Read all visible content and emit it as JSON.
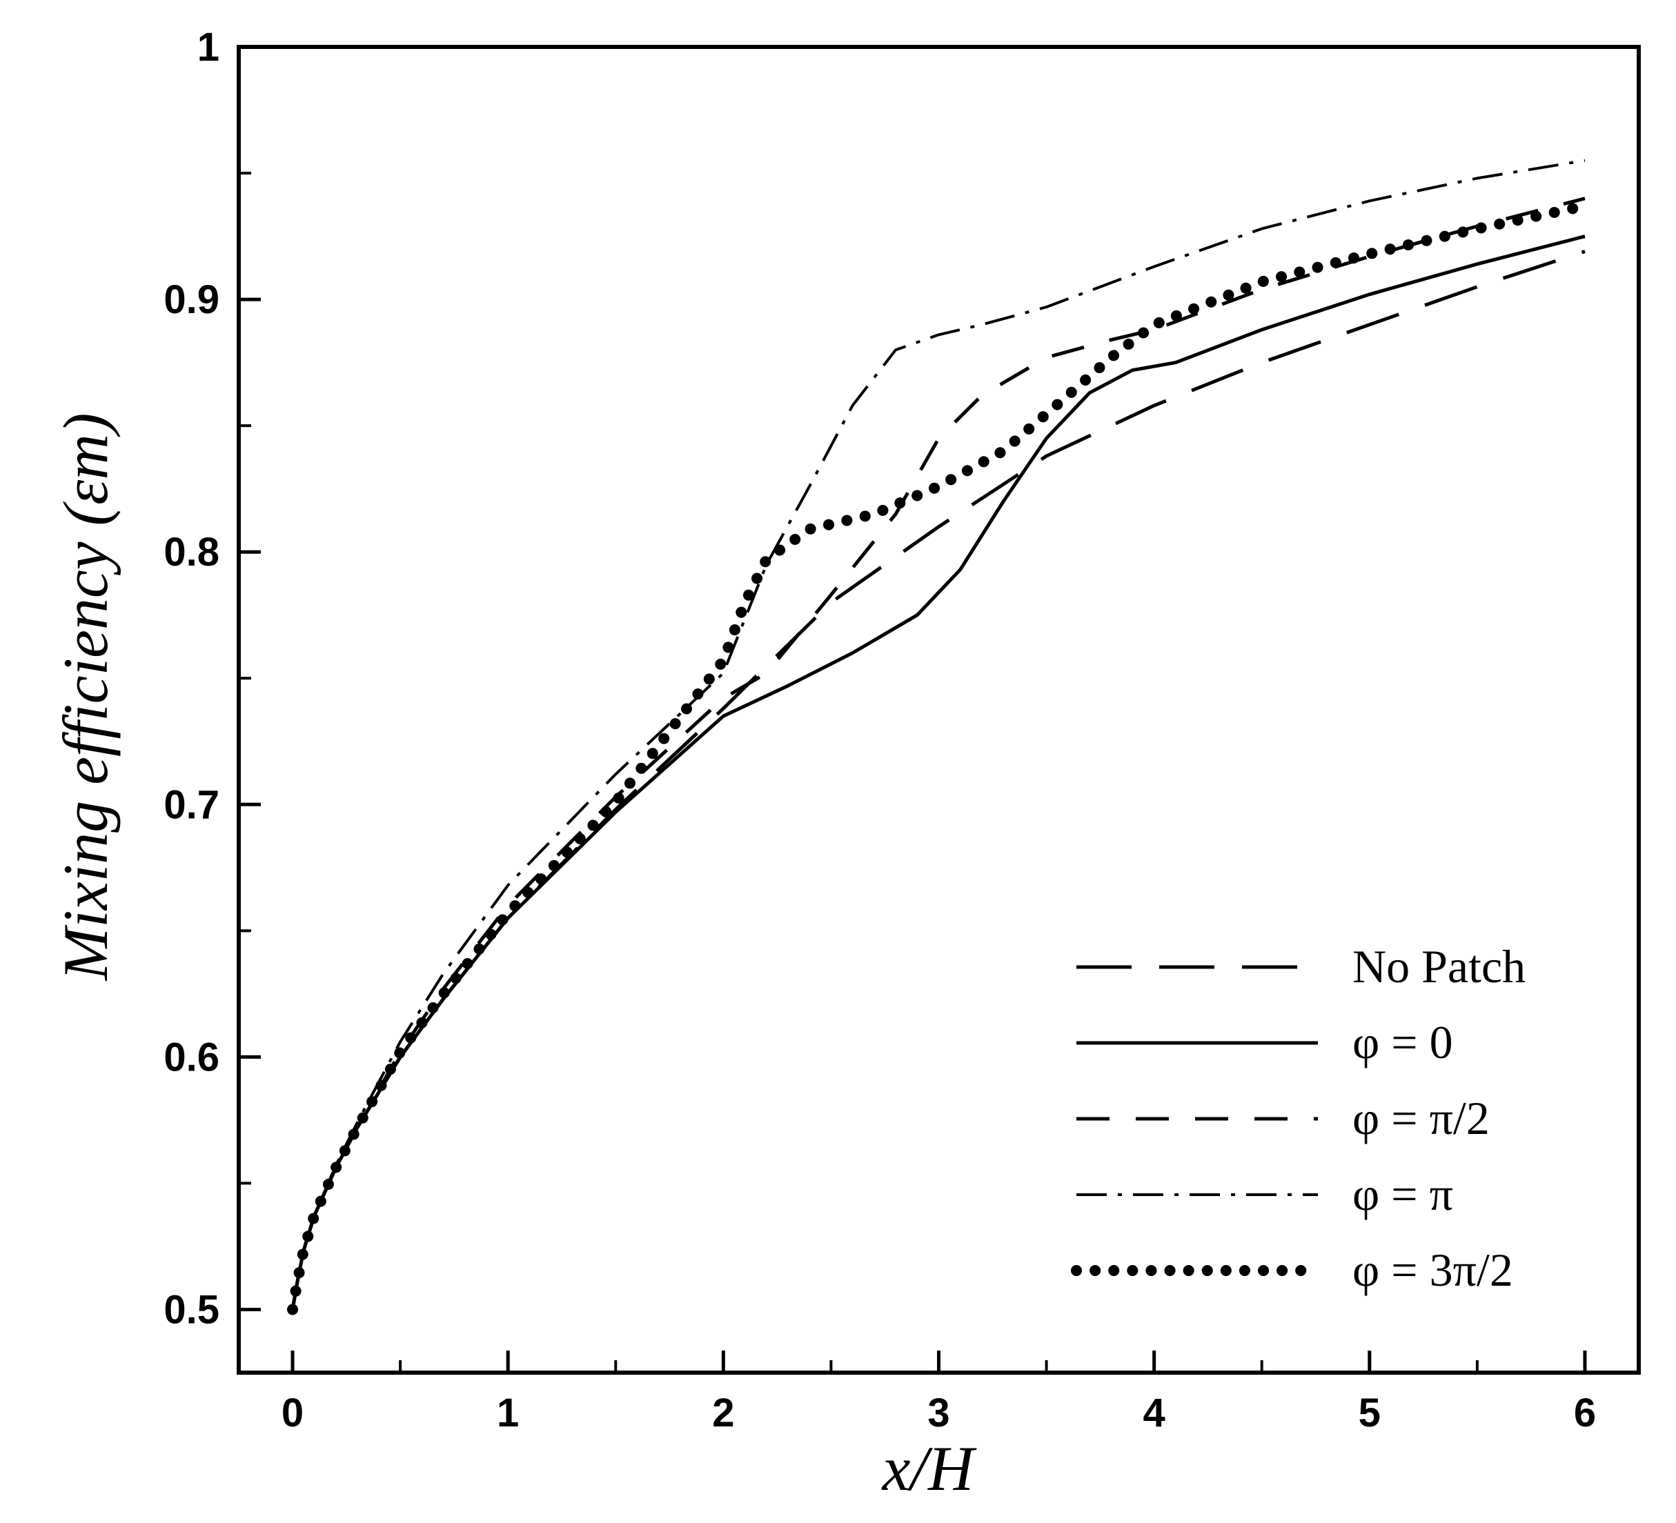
{
  "chart_data": {
    "type": "line",
    "title": "",
    "xlabel": "x/H",
    "ylabel": "Mixing efficiency (εm)",
    "xlim": [
      -0.25,
      6.25
    ],
    "ylim": [
      0.475,
      1.0
    ],
    "xticks": [
      0,
      1,
      2,
      3,
      4,
      5,
      6
    ],
    "xtick_labels": [
      "0",
      "1",
      "2",
      "3",
      "4",
      "5",
      "6"
    ],
    "yticks": [
      0.5,
      0.6,
      0.7,
      0.8,
      0.9,
      1.0
    ],
    "ytick_labels": [
      "0.5",
      "0.6",
      "0.7",
      "0.8",
      "0.9",
      "1"
    ],
    "grid": false,
    "legend_position": "bottom-right",
    "series": [
      {
        "name": "No Patch",
        "style": "longdash",
        "x": [
          0,
          0.02,
          0.05,
          0.1,
          0.2,
          0.3,
          0.5,
          0.7,
          1.0,
          1.5,
          2.0,
          2.5,
          3.0,
          3.5,
          4.0,
          4.5,
          5.0,
          5.5,
          6.0
        ],
        "y": [
          0.5,
          0.51,
          0.523,
          0.537,
          0.556,
          0.572,
          0.6,
          0.623,
          0.655,
          0.698,
          0.738,
          0.78,
          0.81,
          0.838,
          0.858,
          0.875,
          0.89,
          0.905,
          0.919
        ]
      },
      {
        "name": "φ = 0",
        "style": "solid",
        "x": [
          0,
          0.02,
          0.05,
          0.1,
          0.2,
          0.3,
          0.5,
          0.7,
          1.0,
          1.5,
          2.0,
          2.1,
          2.3,
          2.6,
          2.9,
          3.1,
          3.3,
          3.5,
          3.7,
          3.9,
          4.1,
          4.5,
          5.0,
          5.5,
          6.0
        ],
        "y": [
          0.5,
          0.51,
          0.523,
          0.537,
          0.556,
          0.572,
          0.6,
          0.623,
          0.655,
          0.697,
          0.735,
          0.739,
          0.747,
          0.76,
          0.775,
          0.793,
          0.82,
          0.845,
          0.863,
          0.872,
          0.875,
          0.888,
          0.902,
          0.914,
          0.925
        ]
      },
      {
        "name": "φ = π/2",
        "style": "dash",
        "x": [
          0,
          0.02,
          0.05,
          0.1,
          0.2,
          0.3,
          0.5,
          0.7,
          1.0,
          1.5,
          2.0,
          2.2,
          2.5,
          2.8,
          3.0,
          3.2,
          3.5,
          3.8,
          4.0,
          4.5,
          5.0,
          5.5,
          6.0
        ],
        "y": [
          0.5,
          0.51,
          0.523,
          0.537,
          0.556,
          0.572,
          0.602,
          0.627,
          0.66,
          0.703,
          0.742,
          0.752,
          0.783,
          0.815,
          0.845,
          0.862,
          0.877,
          0.884,
          0.888,
          0.904,
          0.917,
          0.929,
          0.94
        ]
      },
      {
        "name": "φ = π",
        "style": "dashdot",
        "x": [
          0,
          0.02,
          0.05,
          0.1,
          0.2,
          0.3,
          0.5,
          0.7,
          1.0,
          1.5,
          2.0,
          2.2,
          2.4,
          2.6,
          2.8,
          3.0,
          3.2,
          3.5,
          4.0,
          4.5,
          5.0,
          5.5,
          6.0
        ],
        "y": [
          0.5,
          0.51,
          0.523,
          0.537,
          0.557,
          0.574,
          0.606,
          0.633,
          0.668,
          0.712,
          0.752,
          0.795,
          0.826,
          0.858,
          0.88,
          0.886,
          0.89,
          0.897,
          0.913,
          0.928,
          0.939,
          0.948,
          0.955
        ]
      },
      {
        "name": "φ = 3π/2",
        "style": "dotted",
        "x": [
          0,
          0.02,
          0.05,
          0.1,
          0.2,
          0.3,
          0.5,
          0.7,
          1.0,
          1.5,
          2.0,
          2.1,
          2.2,
          2.4,
          2.7,
          3.0,
          3.3,
          3.6,
          3.8,
          4.0,
          4.5,
          5.0,
          5.5,
          6.0
        ],
        "y": [
          0.5,
          0.51,
          0.523,
          0.537,
          0.556,
          0.572,
          0.602,
          0.625,
          0.657,
          0.701,
          0.757,
          0.78,
          0.797,
          0.809,
          0.815,
          0.826,
          0.84,
          0.862,
          0.877,
          0.89,
          0.907,
          0.918,
          0.928,
          0.937
        ]
      }
    ]
  }
}
